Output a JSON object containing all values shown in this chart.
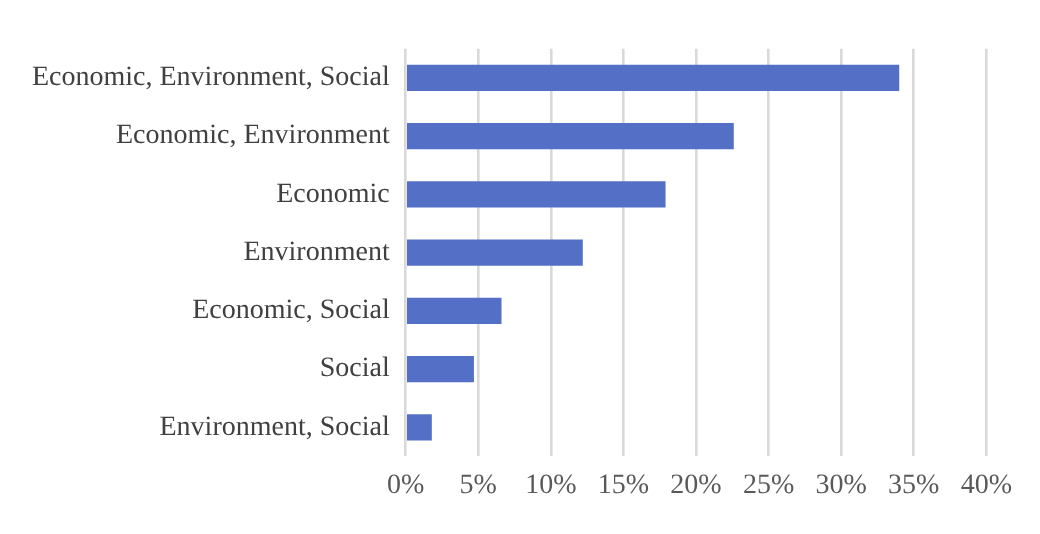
{
  "chart_data": {
    "type": "bar",
    "orientation": "horizontal",
    "categories": [
      "Economic, Environment, Social",
      "Economic, Environment",
      "Economic",
      "Environment",
      "Economic, Social",
      "Social",
      "Environment, Social"
    ],
    "values": [
      34.0,
      22.6,
      17.9,
      12.2,
      6.6,
      4.7,
      1.8
    ],
    "color": "#5470c6",
    "xlim": [
      0,
      40
    ],
    "xticks": [
      {
        "value": 0,
        "label": "0%"
      },
      {
        "value": 5,
        "label": "5%"
      },
      {
        "value": 10,
        "label": "10%"
      },
      {
        "value": 15,
        "label": "15%"
      },
      {
        "value": 20,
        "label": "20%"
      },
      {
        "value": 25,
        "label": "25%"
      },
      {
        "value": 30,
        "label": "30%"
      },
      {
        "value": 35,
        "label": "35%"
      },
      {
        "value": 40,
        "label": "40%"
      }
    ],
    "grid": "x",
    "legend": false
  }
}
